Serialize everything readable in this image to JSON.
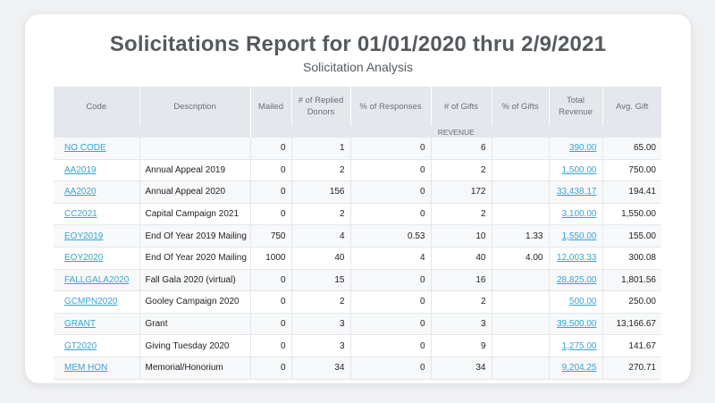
{
  "report": {
    "title": "Solicitations Report for 01/01/2020 thru 2/9/2021",
    "subtitle": "Solicitation Analysis"
  },
  "table": {
    "headers": [
      "Code",
      "Description",
      "Mailed",
      "# of Replied Donors",
      "% of Responses",
      "# of Gifts",
      "% of Gifts",
      "Total Revenue",
      "Avg. Gift"
    ],
    "subheader": "REVENUE",
    "rows": [
      {
        "code": "NO CODE",
        "description": "",
        "mailed": "0",
        "replied": "1",
        "responses": "0",
        "gifts": "6",
        "pct_gifts": "",
        "revenue": "390.00",
        "avg": "65.00"
      },
      {
        "code": "AA2019",
        "description": "Annual Appeal 2019",
        "mailed": "0",
        "replied": "2",
        "responses": "0",
        "gifts": "2",
        "pct_gifts": "",
        "revenue": "1,500.00",
        "avg": "750.00"
      },
      {
        "code": "AA2020",
        "description": "Annual Appeal 2020",
        "mailed": "0",
        "replied": "156",
        "responses": "0",
        "gifts": "172",
        "pct_gifts": "",
        "revenue": "33,438.17",
        "avg": "194.41"
      },
      {
        "code": "CC2021",
        "description": "Capital Campaign 2021",
        "mailed": "0",
        "replied": "2",
        "responses": "0",
        "gifts": "2",
        "pct_gifts": "",
        "revenue": "3,100.00",
        "avg": "1,550.00"
      },
      {
        "code": "EOY2019",
        "description": "End Of Year 2019 Mailing",
        "mailed": "750",
        "replied": "4",
        "responses": "0.53",
        "gifts": "10",
        "pct_gifts": "1.33",
        "revenue": "1,550.00",
        "avg": "155.00"
      },
      {
        "code": "EOY2020",
        "description": "End Of Year 2020 Mailing",
        "mailed": "1000",
        "replied": "40",
        "responses": "4",
        "gifts": "40",
        "pct_gifts": "4.00",
        "revenue": "12,003.33",
        "avg": "300.08"
      },
      {
        "code": "FALLGALA2020",
        "description": "Fall Gala 2020 (virtual)",
        "mailed": "0",
        "replied": "15",
        "responses": "0",
        "gifts": "16",
        "pct_gifts": "",
        "revenue": "28,825.00",
        "avg": "1,801.56"
      },
      {
        "code": "GCMPN2020",
        "description": "Gooley Campaign 2020",
        "mailed": "0",
        "replied": "2",
        "responses": "0",
        "gifts": "2",
        "pct_gifts": "",
        "revenue": "500.00",
        "avg": "250.00"
      },
      {
        "code": "GRANT",
        "description": "Grant",
        "mailed": "0",
        "replied": "3",
        "responses": "0",
        "gifts": "3",
        "pct_gifts": "",
        "revenue": "39,500.00",
        "avg": "13,166.67"
      },
      {
        "code": "GT2020",
        "description": "Giving Tuesday 2020",
        "mailed": "0",
        "replied": "3",
        "responses": "0",
        "gifts": "9",
        "pct_gifts": "",
        "revenue": "1,275.00",
        "avg": "141.67"
      },
      {
        "code": "MEM HON",
        "description": "Memorial/Honorium",
        "mailed": "0",
        "replied": "34",
        "responses": "0",
        "gifts": "34",
        "pct_gifts": "",
        "revenue": "9,204.25",
        "avg": "270.71"
      }
    ]
  },
  "colors": {
    "link": "#3aa2d4",
    "header_bg": "#e4e7ec",
    "title": "#555a5f"
  }
}
